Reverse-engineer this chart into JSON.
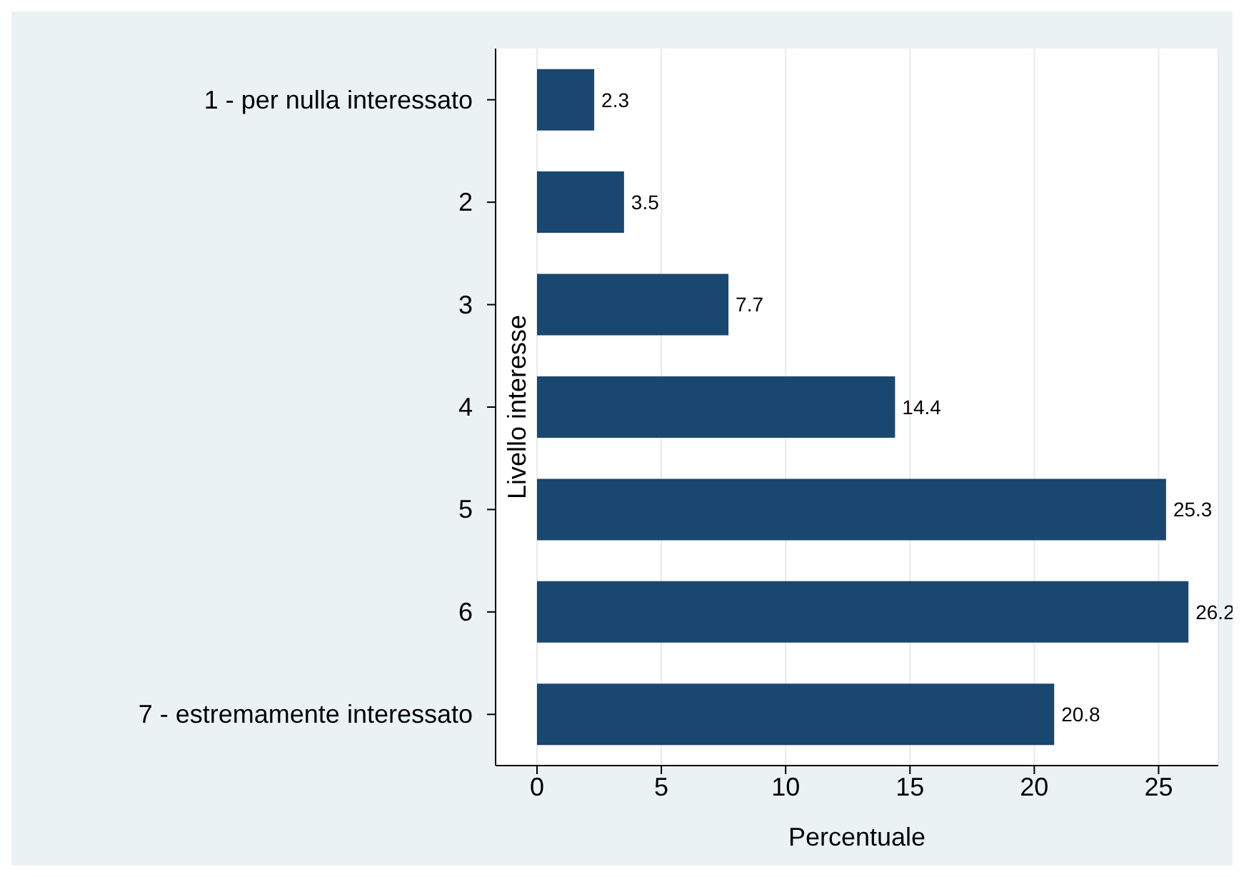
{
  "chart_data": {
    "type": "bar",
    "orientation": "horizontal",
    "categories": [
      "1 - per nulla interessato",
      "2",
      "3",
      "4",
      "5",
      "6",
      "7 - estremamente interessato"
    ],
    "values": [
      2.3,
      3.5,
      7.7,
      14.4,
      25.3,
      26.2,
      20.8
    ],
    "color": "#1a476f",
    "data_labels": true,
    "xlabel": "Percentuale",
    "ylabel": "Livello interesse",
    "xlim": [
      0,
      27.4
    ],
    "xticks": [
      0,
      5,
      10,
      15,
      20,
      25
    ],
    "grid": "x"
  }
}
